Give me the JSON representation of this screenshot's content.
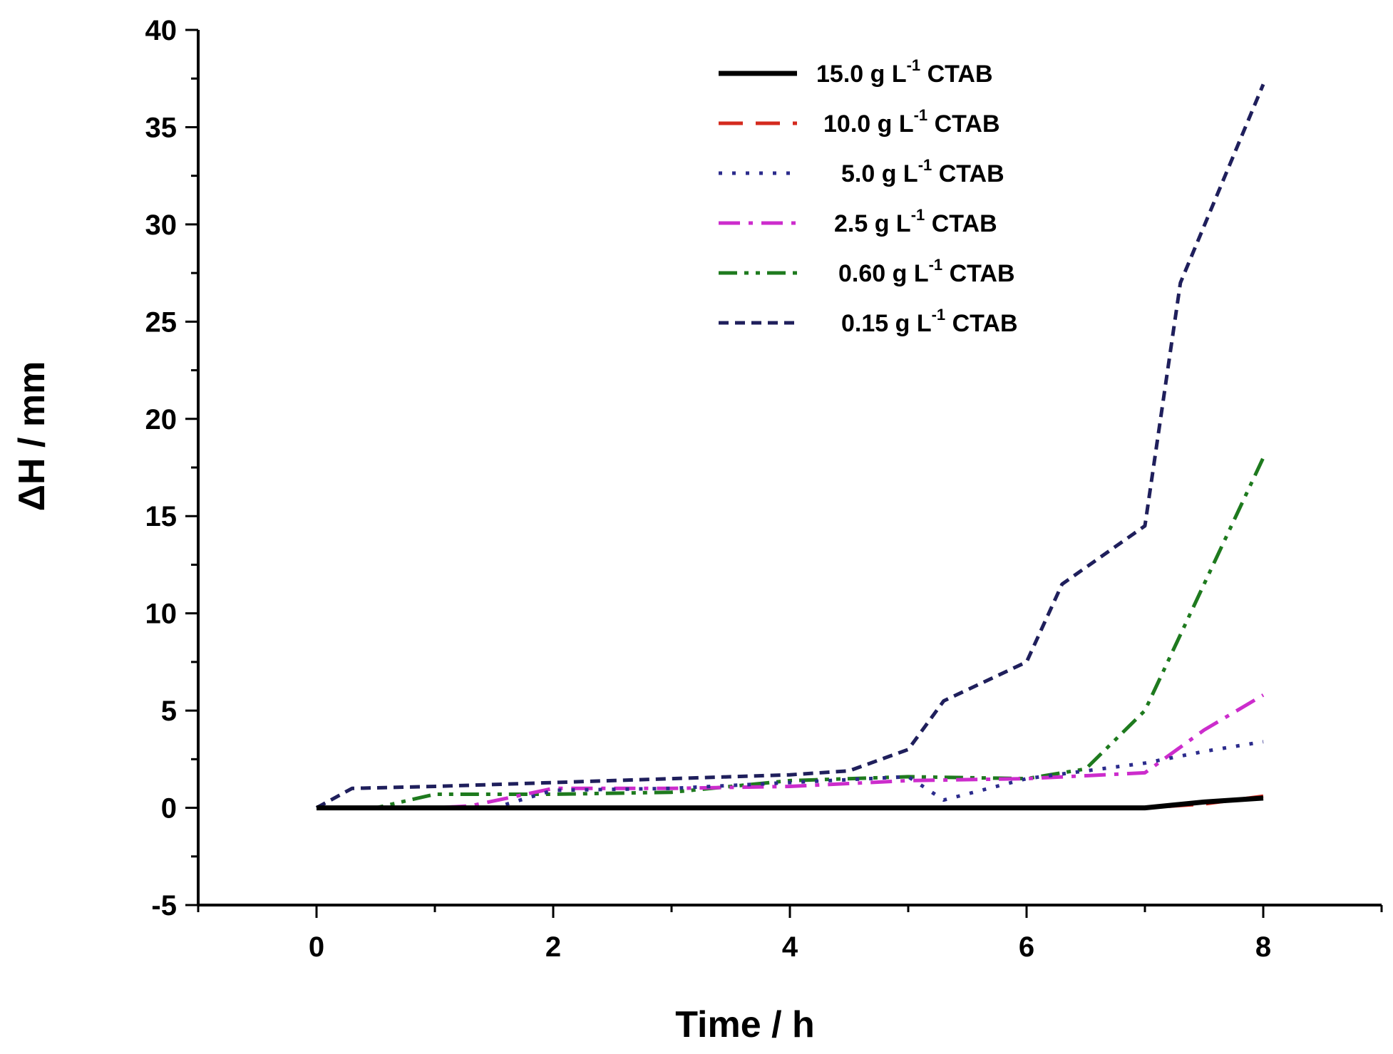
{
  "chart_data": {
    "type": "line",
    "title": "",
    "xlabel": "Time / h",
    "ylabel": "ΔH / mm",
    "xlim": [
      -1,
      9
    ],
    "ylim": [
      -5,
      40
    ],
    "xticks": [
      0,
      2,
      4,
      6,
      8
    ],
    "yticks": [
      -5,
      0,
      5,
      10,
      15,
      20,
      25,
      30,
      35,
      40
    ],
    "grid": false,
    "legend_position": "top-right",
    "series": [
      {
        "name": "15.0 g L-1 CTAB",
        "label_value": "15.0",
        "label_unit": "g L",
        "label_exp": "-1",
        "label_suffix": "CTAB",
        "color": "#000000",
        "style": "solid",
        "x": [
          0,
          1,
          2,
          3,
          4,
          5,
          6,
          7,
          7.5,
          8
        ],
        "y": [
          0,
          0,
          0,
          0,
          0,
          0,
          0,
          0,
          0.3,
          0.5
        ]
      },
      {
        "name": "10.0 g L-1 CTAB",
        "label_value": "10.0",
        "label_unit": "g L",
        "label_exp": "-1",
        "label_suffix": "CTAB",
        "color": "#d42a1e",
        "style": "dash",
        "x": [
          0,
          1,
          2,
          3,
          4,
          5,
          6,
          7,
          7.5,
          8
        ],
        "y": [
          0,
          0,
          0,
          0,
          0,
          0,
          0,
          0,
          0.2,
          0.6
        ]
      },
      {
        "name": "5.0 g L-1 CTAB",
        "label_value": "5.0",
        "label_unit": "g L",
        "label_exp": "-1",
        "label_suffix": "CTAB",
        "color": "#2b2b8c",
        "style": "dot",
        "x": [
          0,
          1,
          1.5,
          2,
          3,
          4,
          5,
          5.3,
          6,
          7,
          7.5,
          8
        ],
        "y": [
          0,
          0,
          0,
          0.9,
          1.0,
          1.3,
          1.6,
          0.4,
          1.5,
          2.3,
          2.9,
          3.4
        ]
      },
      {
        "name": "2.5 g L-1 CTAB",
        "label_value": "2.5",
        "label_unit": "g L",
        "label_exp": "-1",
        "label_suffix": "CTAB",
        "color": "#cc2ccc",
        "style": "dashdot",
        "x": [
          0,
          1,
          1.3,
          2,
          3,
          4,
          5,
          6,
          7,
          7.5,
          8
        ],
        "y": [
          0,
          0,
          0.1,
          1.0,
          1.0,
          1.1,
          1.4,
          1.5,
          1.8,
          4.0,
          5.8
        ]
      },
      {
        "name": "0.60 g L-1 CTAB",
        "label_value": "0.60",
        "label_unit": "g L",
        "label_exp": "-1",
        "label_suffix": "CTAB",
        "color": "#1e7a1e",
        "style": "dashdotdot",
        "x": [
          0,
          0.5,
          1,
          2,
          3,
          4,
          5,
          6,
          6.5,
          7,
          7.5,
          8
        ],
        "y": [
          0,
          0,
          0.7,
          0.7,
          0.8,
          1.4,
          1.6,
          1.5,
          2.0,
          5.0,
          11.5,
          18.0
        ]
      },
      {
        "name": "0.15 g L-1 CTAB",
        "label_value": "0.15",
        "label_unit": "g L",
        "label_exp": "-1",
        "label_suffix": "CTAB",
        "color": "#1f1f5c",
        "style": "shortdash",
        "x": [
          0,
          0.3,
          1,
          2,
          3,
          4,
          4.5,
          5,
          5.3,
          6,
          6.3,
          7,
          7.3,
          8
        ],
        "y": [
          0,
          1.0,
          1.1,
          1.3,
          1.5,
          1.7,
          1.9,
          3.0,
          5.5,
          7.5,
          11.5,
          14.5,
          27.0,
          37.2
        ]
      }
    ]
  }
}
